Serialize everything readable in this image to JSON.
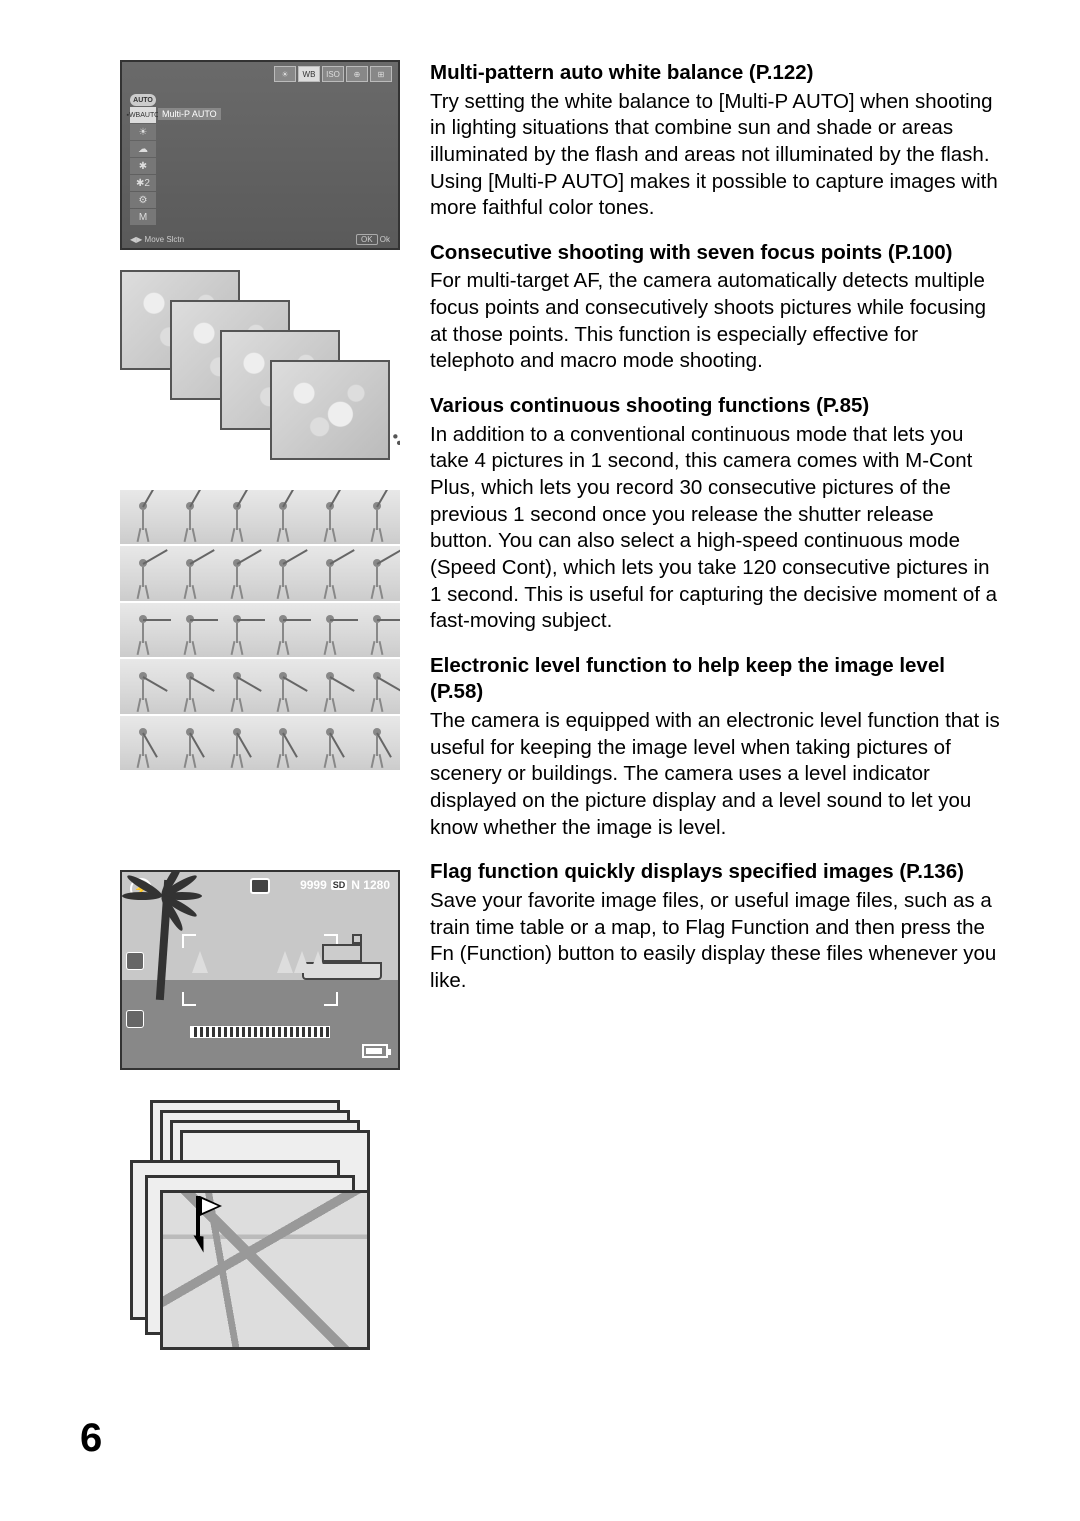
{
  "page_number": "6",
  "sections": [
    {
      "title": "Multi-pattern auto white balance (P.122)",
      "body": "Try setting the white balance to [Multi-P AUTO] when shooting in lighting situations that combine sun and shade or areas illuminated by the flash and areas not illuminated by the flash. Using [Multi-P AUTO] makes it possible to capture images with more faithful color tones."
    },
    {
      "title": "Consecutive shooting with seven focus points (P.100)",
      "body": "For multi-target AF, the camera automatically detects multiple focus points and consecutively shoots pictures while focusing at those points. This function is especially effective for telephoto and macro mode shooting."
    },
    {
      "title": "Various continuous shooting functions (P.85)",
      "body": "In addition to a conventional continuous mode that lets you take 4 pictures in 1 second, this camera comes with M-Cont Plus, which lets you record 30 consecutive pictures of the previous 1 second once you release the shutter release button. You can also select a high-speed continuous mode (Speed Cont), which lets you take 120 consecutive pictures in 1 second. This is useful for capturing the decisive moment of a fast-moving subject."
    },
    {
      "title": "Electronic level function to help keep the image level (P.58)",
      "body": "The camera is equipped with an electronic level function that is useful for keeping the image level when taking pictures of scenery or buildings. The camera uses a level indicator displayed on the picture display and a level sound to let you know whether the image is level."
    },
    {
      "title": "Flag function quickly displays specified images (P.136)",
      "body": "Save your favorite image files, or useful image files, such as a train time table or a map, to Flag Function and then press the Fn (Function) button to easily display these files whenever you like."
    }
  ],
  "menu_illustration": {
    "top_icons": [
      "☀",
      "WB",
      "ISO",
      "⊕",
      "⊞"
    ],
    "top_active_index": 1,
    "auto_label": "AUTO",
    "selected_prefix": "▪WBAUTO",
    "selected_label": "Multi-P AUTO",
    "side_symbols": [
      "☀",
      "☁",
      "✱",
      "✱2",
      "⚙",
      "M"
    ],
    "bottom_left": "◀▶ Move Slctn",
    "bottom_right_btn": "OK",
    "bottom_right_text": "Ok"
  },
  "level_illustration": {
    "flash_icon": "⚡",
    "shots": "9999",
    "sd": "SD",
    "size": "N 1280"
  },
  "golf": {
    "rows": 5,
    "per_row": 6,
    "club_angles": [
      -60,
      -30,
      0,
      30,
      60
    ]
  },
  "colors": {
    "text": "#000000",
    "bg": "#ffffff",
    "frame_border": "#333333",
    "grey_fill": "#dddddd"
  }
}
